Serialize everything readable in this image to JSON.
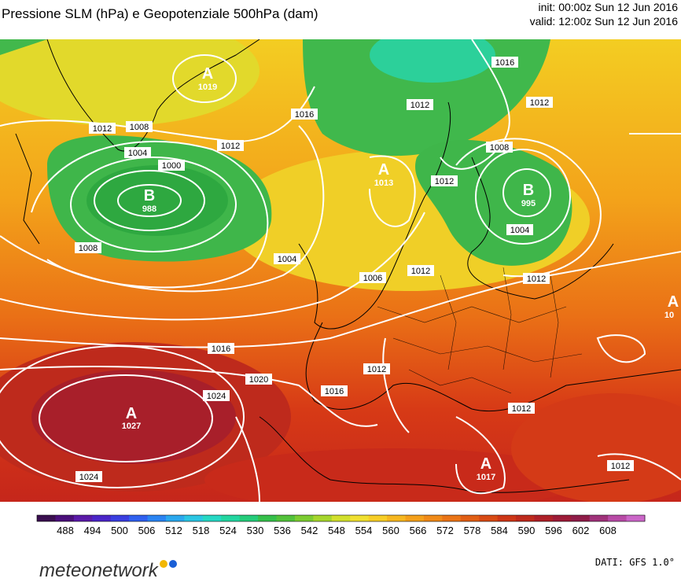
{
  "header": {
    "title": "Pressione SLM (hPa) e Geopotenziale 500hPa (dam)",
    "init": "init: 00:00z Sun 12 Jun 2016",
    "valid": "valid: 12:00z Sun 12 Jun 2016"
  },
  "map": {
    "pressure_centers": [
      {
        "type": "B",
        "value": "988"
      },
      {
        "type": "B",
        "value": "995"
      },
      {
        "type": "A",
        "value": "1027"
      },
      {
        "type": "A",
        "value": "1019"
      },
      {
        "type": "A",
        "value": "1017"
      },
      {
        "type": "A",
        "value": "1013"
      },
      {
        "type": "A",
        "value": "10"
      }
    ],
    "isobar_labels": [
      "1012",
      "1008",
      "1004",
      "1000",
      "1012",
      "1016",
      "1012",
      "1016",
      "1012",
      "1008",
      "1004",
      "1008",
      "1012",
      "1004",
      "1012",
      "1006",
      "1012",
      "1016",
      "1020",
      "1024",
      "1012",
      "1016",
      "1012",
      "1024",
      "1012"
    ]
  },
  "colorbar": {
    "ticks": [
      "488",
      "494",
      "500",
      "506",
      "512",
      "518",
      "524",
      "530",
      "536",
      "542",
      "548",
      "554",
      "560",
      "566",
      "572",
      "578",
      "584",
      "590",
      "596",
      "602",
      "608"
    ],
    "colors": [
      "#3a0f4f",
      "#4a0f7a",
      "#5a1aa8",
      "#4a25c8",
      "#3a3ee0",
      "#2f60ef",
      "#2a84f2",
      "#2aa8ee",
      "#2ac6e3",
      "#25d8c4",
      "#22d6a0",
      "#24cc7a",
      "#35c04a",
      "#52c23a",
      "#7ccc30",
      "#a6d62c",
      "#d2e02c",
      "#f0e030",
      "#f7ce26",
      "#f6b71f",
      "#f4a01a",
      "#f08a18",
      "#ea7416",
      "#e15e14",
      "#d84a14",
      "#cd3616",
      "#be2a1c",
      "#ae2028",
      "#9d1b37",
      "#8f1c48",
      "#a0327a",
      "#b84aa6",
      "#cb66c8"
    ]
  },
  "footer": {
    "logo": "meteonetwork",
    "credits": "DATI: GFS 1.0°",
    "logo_dot_colors": [
      "#f2b705",
      "#1a5fd6"
    ]
  }
}
